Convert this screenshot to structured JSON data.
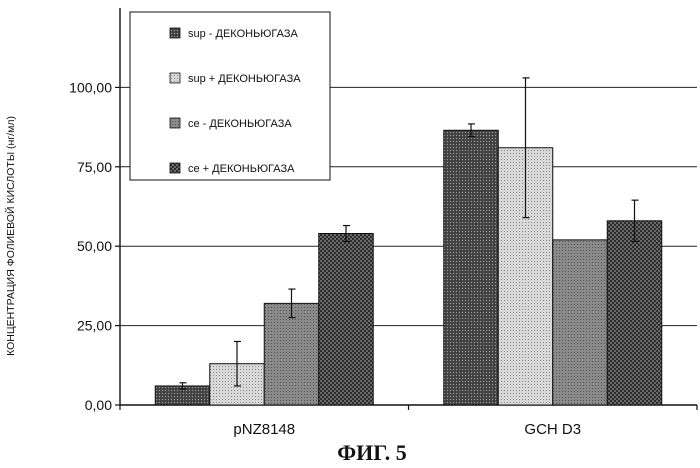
{
  "chart_data": {
    "type": "bar",
    "categories": [
      "pNZ8148",
      "GCH D3"
    ],
    "series": [
      {
        "name": "sup - ДЕКОНЬЮГАЗА",
        "values": [
          6.0,
          86.5
        ],
        "errors": [
          1.0,
          2.0
        ],
        "color": "#555555",
        "pattern": "dots"
      },
      {
        "name": "sup + ДЕКОНЬЮГАЗА",
        "values": [
          13.0,
          81.0
        ],
        "errors": [
          7.0,
          22.0
        ],
        "color": "#cfcfcf",
        "pattern": "light"
      },
      {
        "name": "ce - ДЕКОНЬЮГАЗА",
        "values": [
          32.0,
          52.0
        ],
        "errors": [
          4.5,
          0
        ],
        "color": "#7d7d7d",
        "pattern": "mid"
      },
      {
        "name": "ce + ДЕКОНЬЮГАЗА",
        "values": [
          54.0,
          58.0
        ],
        "errors": [
          2.5,
          6.5
        ],
        "color": "#3a3a3a",
        "pattern": "cross"
      }
    ],
    "ylabel": "КОНЦЕНТРАЦИЯ ФОЛИЕВОЙ КИСЛОТЫ (нг/мл)",
    "xlabel": "",
    "ylim": [
      0,
      125
    ],
    "yticks": [
      0,
      25,
      50,
      75,
      100
    ],
    "ytick_labels": [
      "0,00",
      "25,00",
      "50,00",
      "75,00",
      "100,00"
    ],
    "grid": true,
    "legend_position": "top-left",
    "caption": "ФИГ. 5"
  }
}
